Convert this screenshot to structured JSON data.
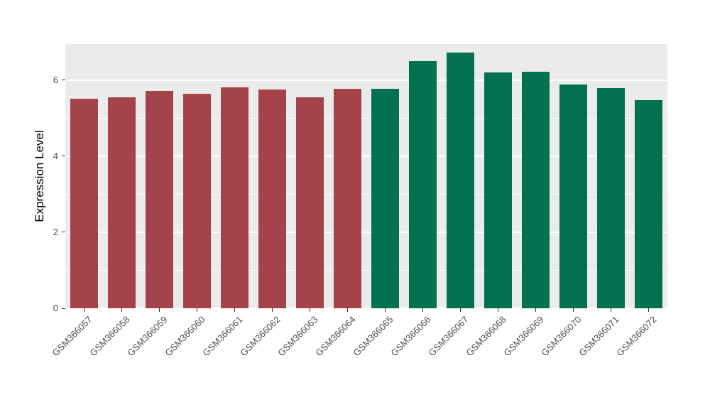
{
  "chart_data": {
    "type": "bar",
    "title": "",
    "xlabel": "",
    "ylabel": "Expression Level",
    "categories": [
      "GSM366057",
      "GSM366058",
      "GSM366059",
      "GSM366060",
      "GSM366061",
      "GSM366062",
      "GSM366063",
      "GSM366064",
      "GSM366065",
      "GSM366066",
      "GSM366067",
      "GSM366068",
      "GSM366069",
      "GSM366070",
      "GSM366071",
      "GSM366072"
    ],
    "values": [
      5.51,
      5.55,
      5.72,
      5.64,
      5.81,
      5.75,
      5.55,
      5.77,
      5.77,
      6.5,
      6.72,
      6.2,
      6.22,
      5.88,
      5.8,
      5.47
    ],
    "bar_colors": [
      "#A5434B",
      "#A5434B",
      "#A5434B",
      "#A5434B",
      "#A5434B",
      "#A5434B",
      "#A5434B",
      "#A5434B",
      "#027150",
      "#027150",
      "#027150",
      "#027150",
      "#027150",
      "#027150",
      "#027150",
      "#027150"
    ],
    "ylim": [
      0,
      6.95
    ],
    "yticks": [
      0,
      2,
      4,
      6
    ],
    "minor_ticks": [
      1,
      3,
      5
    ],
    "bar_width_ratio": 0.73,
    "panel_bg": "#EBEBEB",
    "grid_color": "#FFFFFF",
    "tick_color": "#333333",
    "tick_label_color": "#4D4D4D",
    "legend": "none",
    "grid": "on"
  }
}
